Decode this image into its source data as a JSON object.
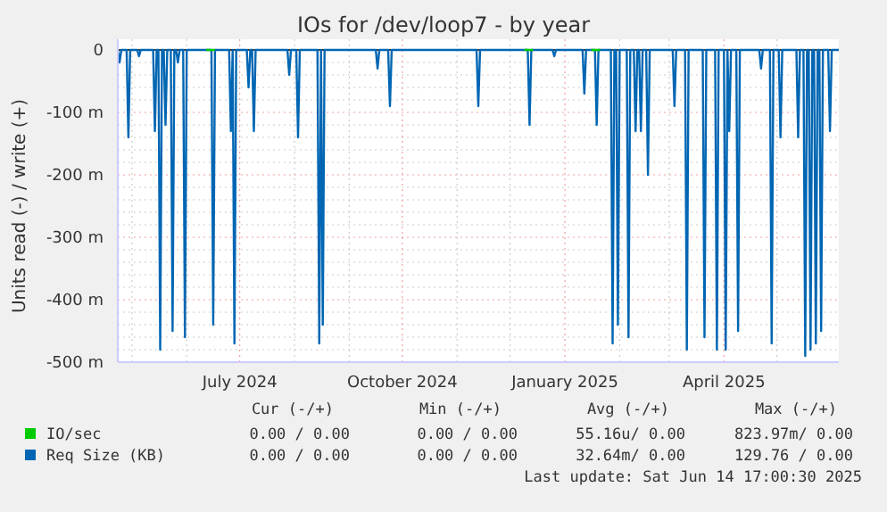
{
  "chart_data": {
    "type": "line",
    "title": "IOs for /dev/loop7 - by year",
    "ylabel": "Units read (-) / write (+)",
    "xlim": [
      "2024-04-23",
      "2025-06-05"
    ],
    "xticks": [
      {
        "value": "2024-05-01",
        "label": null
      },
      {
        "value": "2024-06-01",
        "label": null
      },
      {
        "value": "2024-07-01",
        "label": "July 2024"
      },
      {
        "value": "2024-08-01",
        "label": null
      },
      {
        "value": "2024-09-01",
        "label": null
      },
      {
        "value": "2024-10-01",
        "label": "October 2024"
      },
      {
        "value": "2024-11-01",
        "label": null
      },
      {
        "value": "2024-12-01",
        "label": null
      },
      {
        "value": "2025-01-01",
        "label": "January 2025"
      },
      {
        "value": "2025-02-01",
        "label": null
      },
      {
        "value": "2025-03-01",
        "label": null
      },
      {
        "value": "2025-04-01",
        "label": "April 2025"
      },
      {
        "value": "2025-05-01",
        "label": null
      }
    ],
    "ylim": [
      -500,
      0
    ],
    "yticks": [
      0,
      {
        "value": -20,
        "label": null
      },
      {
        "value": -40,
        "label": null
      },
      {
        "value": -60,
        "label": null
      },
      {
        "value": -80,
        "label": null
      },
      {
        "value": -100,
        "label": "-100 m"
      },
      {
        "value": -120,
        "label": null
      },
      {
        "value": -140,
        "label": null
      },
      {
        "value": -160,
        "label": null
      },
      {
        "value": -180,
        "label": null
      },
      {
        "value": -200,
        "label": "-200 m"
      },
      {
        "value": -220,
        "label": null
      },
      {
        "value": -240,
        "label": null
      },
      {
        "value": -260,
        "label": null
      },
      {
        "value": -280,
        "label": null
      },
      {
        "value": -300,
        "label": "-300 m"
      },
      {
        "value": -320,
        "label": null
      },
      {
        "value": -340,
        "label": null
      },
      {
        "value": -360,
        "label": null
      },
      {
        "value": -380,
        "label": null
      },
      {
        "value": -400,
        "label": "-400 m"
      },
      {
        "value": -420,
        "label": null
      },
      {
        "value": -440,
        "label": null
      },
      {
        "value": -460,
        "label": null
      },
      {
        "value": -480,
        "label": null
      },
      {
        "value": -500,
        "label": "-500 m"
      }
    ],
    "grid": true,
    "legend": "bottom",
    "series": [
      {
        "name": "IO/sec",
        "color": "#00cc00",
        "x": [
          "2024-06-12",
          "2024-06-17",
          "2024-06-18",
          "2024-12-09",
          "2024-12-14",
          "2024-12-15",
          "2025-01-16",
          "2025-01-21"
        ],
        "values": [
          0,
          0,
          null,
          0,
          0,
          null,
          0,
          0
        ]
      },
      {
        "name": "Req Size (KB)",
        "color": "#0066b3",
        "x": [
          "2024-04-23",
          "2024-04-24",
          "2024-04-25",
          "2024-04-28",
          "2024-04-29",
          "2024-04-30",
          "2024-05-04",
          "2024-05-05",
          "2024-05-06",
          "2024-05-13",
          "2024-05-14",
          "2024-05-15",
          "2024-05-16",
          "2024-05-17",
          "2024-05-18",
          "2024-05-19",
          "2024-05-20",
          "2024-05-21",
          "2024-05-23",
          "2024-05-24",
          "2024-05-25",
          "2024-05-26",
          "2024-05-27",
          "2024-05-28",
          "2024-05-30",
          "2024-05-31",
          "2024-06-01",
          "2024-06-15",
          "2024-06-16",
          "2024-06-17",
          "2024-06-25",
          "2024-06-26",
          "2024-06-27",
          "2024-06-28",
          "2024-06-29",
          "2024-07-05",
          "2024-07-06",
          "2024-07-07",
          "2024-07-08",
          "2024-07-09",
          "2024-07-10",
          "2024-07-28",
          "2024-07-29",
          "2024-07-30",
          "2024-08-02",
          "2024-08-03",
          "2024-08-04",
          "2024-08-14",
          "2024-08-15",
          "2024-08-16",
          "2024-08-17",
          "2024-08-18",
          "2024-09-16",
          "2024-09-17",
          "2024-09-18",
          "2024-09-23",
          "2024-09-24",
          "2024-09-25",
          "2024-11-12",
          "2024-11-13",
          "2024-11-14",
          "2024-12-11",
          "2024-12-12",
          "2024-12-13",
          "2024-12-25",
          "2024-12-26",
          "2024-12-27",
          "2025-01-11",
          "2025-01-12",
          "2025-01-13",
          "2025-01-18",
          "2025-01-19",
          "2025-01-20",
          "2025-01-27",
          "2025-01-28",
          "2025-01-29",
          "2025-01-30",
          "2025-01-31",
          "2025-02-01",
          "2025-02-05",
          "2025-02-06",
          "2025-02-07",
          "2025-02-09",
          "2025-02-10",
          "2025-02-11",
          "2025-02-12",
          "2025-02-13",
          "2025-02-14",
          "2025-02-16",
          "2025-02-17",
          "2025-02-18",
          "2025-03-03",
          "2025-03-04",
          "2025-03-05",
          "2025-03-10",
          "2025-03-11",
          "2025-03-12",
          "2025-03-20",
          "2025-03-21",
          "2025-03-22",
          "2025-03-27",
          "2025-03-28",
          "2025-03-29",
          "2025-04-01",
          "2025-04-02",
          "2025-04-03",
          "2025-04-04",
          "2025-04-05",
          "2025-04-08",
          "2025-04-09",
          "2025-04-10",
          "2025-04-21",
          "2025-04-22",
          "2025-04-23",
          "2025-04-27",
          "2025-04-28",
          "2025-04-29",
          "2025-05-02",
          "2025-05-03",
          "2025-05-04",
          "2025-05-12",
          "2025-05-13",
          "2025-05-14",
          "2025-05-16",
          "2025-05-17",
          "2025-05-18",
          "2025-05-19",
          "2025-05-20",
          "2025-05-21",
          "2025-05-22",
          "2025-05-23",
          "2025-05-24",
          "2025-05-25",
          "2025-05-26",
          "2025-05-27",
          "2025-05-30",
          "2025-05-31",
          "2025-06-01",
          "2025-06-05"
        ],
        "values": [
          0,
          -20,
          0,
          0,
          -140,
          0,
          0,
          -10,
          0,
          0,
          -130,
          0,
          0,
          -480,
          0,
          0,
          -120,
          0,
          0,
          -450,
          0,
          0,
          -20,
          0,
          0,
          -460,
          0,
          0,
          -440,
          0,
          0,
          -130,
          0,
          -470,
          0,
          0,
          -60,
          0,
          0,
          -130,
          0,
          0,
          -40,
          0,
          0,
          -140,
          0,
          0,
          -470,
          0,
          -440,
          0,
          0,
          -30,
          0,
          0,
          -90,
          0,
          0,
          -90,
          0,
          0,
          -120,
          0,
          0,
          -10,
          0,
          0,
          -70,
          0,
          0,
          -120,
          0,
          0,
          -470,
          0,
          0,
          -440,
          0,
          0,
          -460,
          0,
          0,
          -130,
          0,
          0,
          -130,
          0,
          0,
          -200,
          0,
          0,
          -90,
          0,
          0,
          -480,
          0,
          0,
          -460,
          0,
          0,
          -480,
          0,
          0,
          -480,
          0,
          -130,
          0,
          0,
          -450,
          0,
          0,
          -30,
          0,
          0,
          -470,
          0,
          0,
          -140,
          0,
          0,
          -140,
          0,
          0,
          -490,
          0,
          0,
          -480,
          0,
          0,
          -470,
          0,
          0,
          -450,
          0,
          0,
          -130,
          0,
          0
        ]
      }
    ],
    "annotations": [
      "Cur (-/+)",
      "Min (-/+)",
      "Avg (-/+)",
      "Max (-/+)",
      "0.00 / 0.00",
      "0.00 / 0.00",
      "55.16u/ 0.00",
      "823.97m/ 0.00",
      "0.00 / 0.00",
      "0.00 / 0.00",
      "32.64m/ 0.00",
      "129.76 / 0.00",
      "Last update: Sat Jun 14 17:00:30 2025"
    ]
  }
}
